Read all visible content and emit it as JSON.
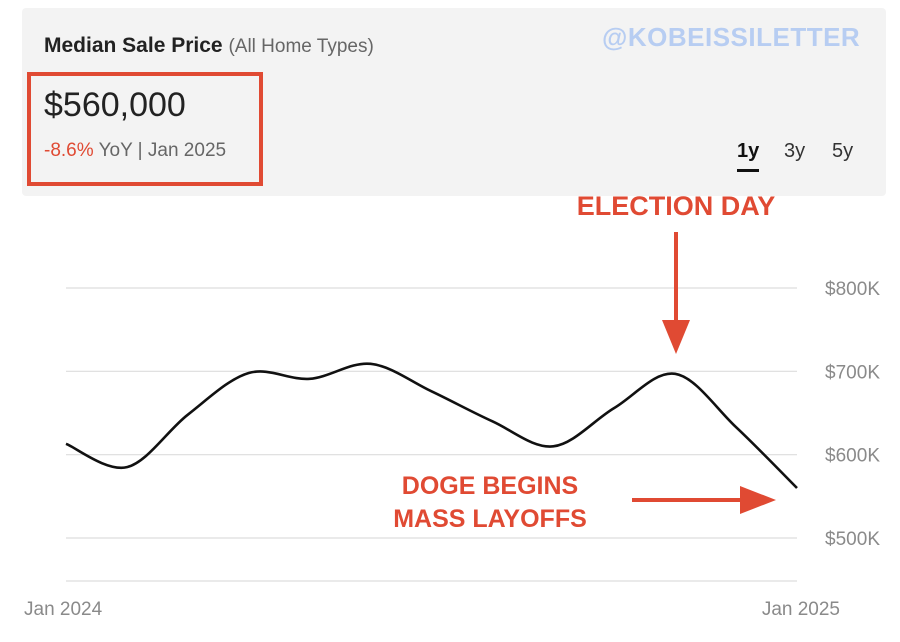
{
  "header": {
    "title": "Median Sale Price",
    "subtitle": "(All Home Types)",
    "watermark": "@KOBEISSILETTER",
    "price": "$560,000",
    "change": "-8.6%",
    "change_suffix": "YoY | Jan 2025",
    "tabs": [
      {
        "label": "1y",
        "active": true
      },
      {
        "label": "3y",
        "active": false
      },
      {
        "label": "5y",
        "active": false
      }
    ]
  },
  "annotations": {
    "election": "ELECTION DAY",
    "doge_line1": "DOGE BEGINS",
    "doge_line2": "MASS LAYOFFS"
  },
  "colors": {
    "accent": "#e04a33",
    "line": "#111111",
    "grid": "#dddddd",
    "axis_text": "#8a8a8a"
  },
  "chart_data": {
    "type": "line",
    "title": "Median Sale Price",
    "ylim": [
      450000,
      850000
    ],
    "y_ticks": [
      {
        "value": 800000,
        "label": "$800K"
      },
      {
        "value": 700000,
        "label": "$700K"
      },
      {
        "value": 600000,
        "label": "$600K"
      },
      {
        "value": 500000,
        "label": "$500K"
      }
    ],
    "x_labels": [
      {
        "date": "2024-01",
        "label": "Jan 2024"
      },
      {
        "date": "2025-01",
        "label": "Jan 2025"
      }
    ],
    "x_range": [
      "2024-01",
      "2025-01"
    ],
    "series": [
      {
        "points": [
          {
            "x": "2024-01",
            "y": 613000
          },
          {
            "x": "2024-02",
            "y": 585000
          },
          {
            "x": "2024-03",
            "y": 648000
          },
          {
            "x": "2024-04",
            "y": 698000
          },
          {
            "x": "2024-05",
            "y": 691000
          },
          {
            "x": "2024-06",
            "y": 709000
          },
          {
            "x": "2024-07",
            "y": 676000
          },
          {
            "x": "2024-08",
            "y": 640000
          },
          {
            "x": "2024-09",
            "y": 610000
          },
          {
            "x": "2024-10",
            "y": 656000
          },
          {
            "x": "2024-11",
            "y": 697000
          },
          {
            "x": "2024-12",
            "y": 633000
          },
          {
            "x": "2025-01",
            "y": 560000
          }
        ]
      }
    ]
  }
}
